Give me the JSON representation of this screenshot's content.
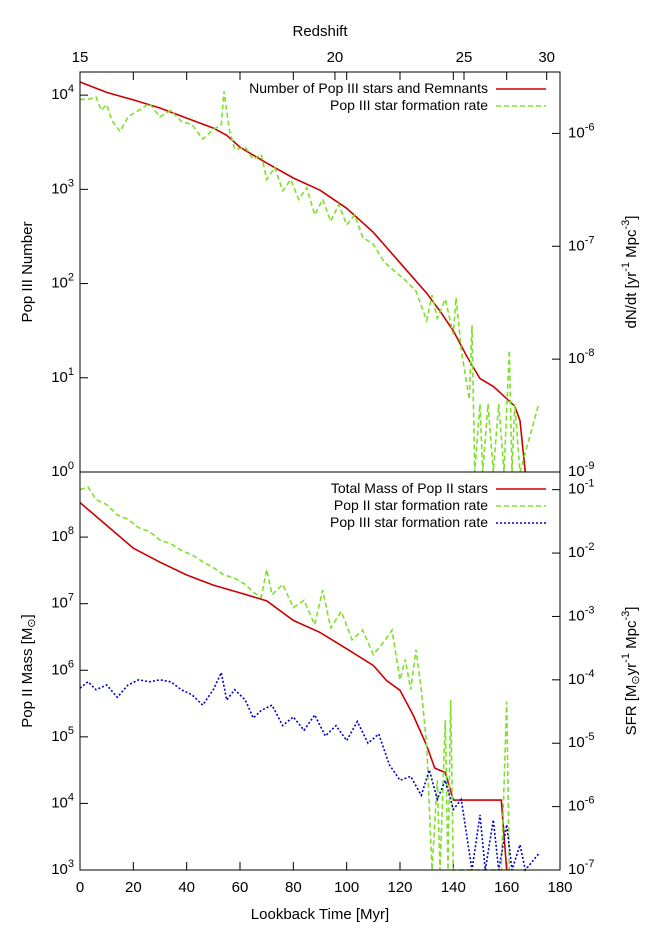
{
  "chart_data": [
    {
      "type": "line",
      "ylabel": "Pop III Number",
      "y2label": "dN/dt [yr^{-1} Mpc^{-3}]",
      "x2label": "Redshift",
      "x2ticks": [
        15,
        20,
        25,
        30
      ],
      "x2tick_positions": [
        0,
        95.6,
        144,
        175
      ],
      "xlim": [
        0,
        180
      ],
      "ylim": [
        1,
        17600
      ],
      "y2lim": [
        1e-09,
        3.5e-06
      ],
      "ylog": true,
      "y2log": true,
      "yticks": [
        {
          "value": 1,
          "label": "10^{0}"
        },
        {
          "value": 10,
          "label": "10^{1}"
        },
        {
          "value": 100,
          "label": "10^{2}"
        },
        {
          "value": 1000,
          "label": "10^{3}"
        },
        {
          "value": 10000,
          "label": "10^{4}"
        }
      ],
      "y2ticks": [
        {
          "value": 1e-09,
          "label": "10^{-9}"
        },
        {
          "value": 1e-08,
          "label": "10^{-8}"
        },
        {
          "value": 1e-07,
          "label": "10^{-7}"
        },
        {
          "value": 1e-06,
          "label": "10^{-6}"
        }
      ],
      "legend": "top-right",
      "series": [
        {
          "name": "Number of Pop III stars and Remnants",
          "color": "#cc0000",
          "line_style": "solid",
          "x": [
            0,
            10,
            20,
            30,
            40,
            50,
            55,
            60,
            70,
            80,
            90,
            100,
            110,
            120,
            130,
            135,
            140,
            145,
            150,
            155,
            160,
            163,
            165,
            167
          ],
          "values": [
            13800,
            10700,
            8900,
            7300,
            5700,
            4470,
            3750,
            2800,
            1900,
            1320,
            980,
            630,
            350,
            166,
            79,
            51,
            31.5,
            17,
            9.8,
            8.1,
            6.0,
            5.0,
            3.5,
            1
          ]
        },
        {
          "name": "Pop III star formation rate",
          "color": "#7ee02a",
          "line_style": "dashed",
          "axis": "y2",
          "x": [
            0,
            3,
            6,
            8,
            10,
            12,
            15,
            18,
            22,
            26,
            30,
            34,
            38,
            42,
            46,
            50,
            53,
            54,
            56,
            58,
            62,
            65,
            68,
            70,
            73,
            76,
            79,
            82,
            85,
            88,
            91,
            94,
            97,
            100,
            103,
            106,
            110,
            114,
            118,
            122,
            126,
            130,
            132,
            134,
            137,
            140,
            141,
            143,
            146,
            147,
            148,
            150,
            151,
            153,
            155,
            157,
            159,
            161,
            162,
            163,
            165,
            172
          ],
          "values": [
            2e-06,
            2e-06,
            2.1e-06,
            1.6e-06,
            1.8e-06,
            1.3e-06,
            1.04e-06,
            1.4e-06,
            1.6e-06,
            1.85e-06,
            1.4e-06,
            1.6e-06,
            1.28e-06,
            1.2e-06,
            8.9e-07,
            1.08e-06,
            1.2e-06,
            2.36e-06,
            1.08e-06,
            7.2e-07,
            7.5e-07,
            5.9e-07,
            6.5e-07,
            3.9e-07,
            5e-07,
            3.1e-07,
            3.9e-07,
            2.6e-07,
            3.3e-07,
            1.9e-07,
            2.6e-07,
            1.66e-07,
            2.35e-07,
            1.55e-07,
            1.9e-07,
            1.2e-07,
            1.04e-07,
            7.3e-08,
            6e-08,
            5e-08,
            4e-08,
            2.2e-08,
            3.7e-08,
            2.3e-08,
            3.4e-08,
            1.66e-08,
            3.5e-08,
            1.2e-08,
            4.4e-09,
            2e-08,
            1e-09,
            4e-09,
            1e-09,
            4e-09,
            1e-09,
            4e-09,
            1e-09,
            1.2e-08,
            1e-09,
            4e-09,
            1e-09,
            4e-09
          ]
        }
      ]
    },
    {
      "type": "line",
      "ylabel": "Pop II Mass [M_{⊙}]",
      "y2label": "SFR [M_{⊙}yr^{-1} Mpc^{-3}]",
      "xlabel": "Lookback Time [Myr]",
      "xlim": [
        0,
        180
      ],
      "xticks": [
        0,
        20,
        40,
        60,
        80,
        100,
        120,
        140,
        160,
        180
      ],
      "ylim": [
        1000,
        950000000.0
      ],
      "y2lim": [
        1e-07,
        0.19
      ],
      "ylog": true,
      "y2log": true,
      "yticks": [
        {
          "value": 1000,
          "label": "10^{3}"
        },
        {
          "value": 10000,
          "label": "10^{4}"
        },
        {
          "value": 100000,
          "label": "10^{5}"
        },
        {
          "value": 1000000,
          "label": "10^{6}"
        },
        {
          "value": 10000000,
          "label": "10^{7}"
        },
        {
          "value": 100000000,
          "label": "10^{8}"
        }
      ],
      "y2ticks": [
        {
          "value": 1e-07,
          "label": "10^{-7}"
        },
        {
          "value": 1e-06,
          "label": "10^{-6}"
        },
        {
          "value": 1e-05,
          "label": "10^{-5}"
        },
        {
          "value": 0.0001,
          "label": "10^{-4}"
        },
        {
          "value": 0.001,
          "label": "10^{-3}"
        },
        {
          "value": 0.01,
          "label": "10^{-2}"
        },
        {
          "value": 0.1,
          "label": "10^{-1}"
        }
      ],
      "legend": "top-right",
      "series": [
        {
          "name": "Total Mass of Pop II stars",
          "color": "#cc0000",
          "line_style": "solid",
          "x": [
            0,
            10,
            20,
            30,
            40,
            50,
            60,
            70,
            80,
            90,
            100,
            110,
            115,
            120,
            125,
            130,
            133,
            137,
            140,
            158,
            160
          ],
          "values": [
            330000000.0,
            150000000.0,
            68000000.0,
            42000000.0,
            27000000.0,
            19000000.0,
            14500000.0,
            11000000.0,
            5600000.0,
            3700000.0,
            2100000.0,
            1180000.0,
            700000.0,
            500000.0,
            210000.0,
            74000.0,
            34000.0,
            29000.0,
            11200.0,
            11200.0,
            1000
          ]
        },
        {
          "name": "Pop II star formation rate",
          "color": "#7ee02a",
          "line_style": "dashed",
          "axis": "y2",
          "x": [
            0,
            3,
            6,
            10,
            14,
            18,
            22,
            26,
            30,
            34,
            38,
            42,
            46,
            50,
            54,
            58,
            62,
            65,
            68,
            70,
            72,
            76,
            80,
            84,
            88,
            91,
            94,
            98,
            102,
            106,
            110,
            114,
            117,
            120,
            122,
            124,
            126,
            128,
            130,
            132,
            134,
            135,
            137,
            138,
            139,
            140,
            158,
            160,
            161
          ],
          "values": [
            0.1,
            0.11,
            0.07,
            0.058,
            0.04,
            0.034,
            0.025,
            0.022,
            0.016,
            0.014,
            0.011,
            0.0094,
            0.0073,
            0.0059,
            0.0045,
            0.004,
            0.0032,
            0.0024,
            0.002,
            0.0055,
            0.0022,
            0.0032,
            0.00138,
            0.0018,
            0.00074,
            0.0026,
            0.00066,
            0.0012,
            0.00043,
            0.00061,
            0.00025,
            0.0004,
            0.00061,
            0.0001,
            0.00021,
            7e-05,
            0.0003,
            7e-05,
            9.3e-06,
            1e-07,
            2.6e-06,
            1e-07,
            2.3e-05,
            1e-07,
            4.8e-05,
            1e-07,
            1e-07,
            4.5e-05,
            1e-07
          ]
        },
        {
          "name": "Pop III star formation rate",
          "color": "#0000cc",
          "line_style": "dotted",
          "axis": "y2",
          "x": [
            0,
            3,
            6,
            10,
            14,
            18,
            22,
            26,
            30,
            34,
            38,
            42,
            46,
            50,
            53,
            55,
            58,
            62,
            65,
            68,
            72,
            76,
            80,
            84,
            88,
            92,
            96,
            100,
            104,
            108,
            112,
            116,
            120,
            124,
            128,
            131,
            134,
            137,
            140,
            143,
            145,
            147,
            150,
            152,
            155,
            157,
            160,
            162,
            165,
            167,
            172
          ],
          "values": [
            7.4e-05,
            9.3e-05,
            7e-05,
            8.3e-05,
            5.3e-05,
            8.3e-05,
            0.0001,
            9.3e-05,
            0.0001,
            9.3e-05,
            7e-05,
            5.8e-05,
            4e-05,
            7e-05,
            0.00013,
            4.8e-05,
            7e-05,
            4.8e-05,
            2.5e-05,
            3.3e-05,
            4e-05,
            1.9e-05,
            2.6e-05,
            1.6e-05,
            2.8e-05,
            1.3e-05,
            1.9e-05,
            1.1e-05,
            2.2e-05,
            1e-05,
            1.4e-05,
            4.6e-06,
            2.6e-06,
            3e-06,
            1.5e-06,
            3.8e-06,
            1.3e-06,
            2.6e-06,
            9e-07,
            1.3e-06,
            3.5e-07,
            1e-07,
            7.4e-07,
            1e-07,
            6.2e-07,
            1e-07,
            5.2e-07,
            1e-07,
            2.5e-07,
            1e-07,
            1.8e-07
          ]
        }
      ]
    }
  ]
}
